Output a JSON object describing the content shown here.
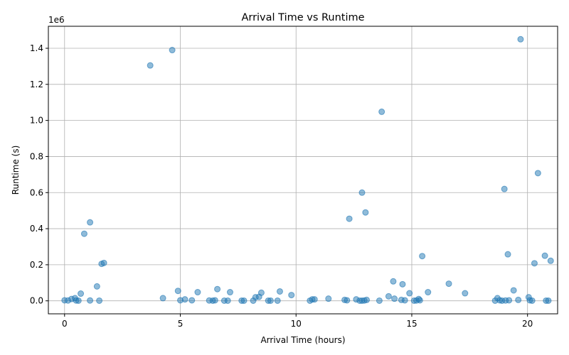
{
  "chart_data": {
    "type": "scatter",
    "title": "Arrival Time vs Runtime",
    "xlabel": "Arrival Time (hours)",
    "ylabel": "Runtime (s)",
    "y_offset_label": "1e6",
    "xlim": [
      -0.7,
      21.3
    ],
    "ylim": [
      -72000,
      1522000
    ],
    "x_ticks": [
      0,
      5,
      10,
      15,
      20
    ],
    "x_tick_labels": [
      "0",
      "5",
      "10",
      "15",
      "20"
    ],
    "y_ticks": [
      0,
      200000,
      400000,
      600000,
      800000,
      1000000,
      1200000,
      1400000
    ],
    "y_tick_labels": [
      "0.0",
      "0.2",
      "0.4",
      "0.6",
      "0.8",
      "1.0",
      "1.2",
      "1.4"
    ],
    "grid": true,
    "marker_color": "#1f77b4",
    "points": [
      {
        "x": 0.0,
        "y": 3000
      },
      {
        "x": 0.15,
        "y": 2000
      },
      {
        "x": 0.3,
        "y": 10000
      },
      {
        "x": 0.45,
        "y": 15000
      },
      {
        "x": 0.5,
        "y": 2000
      },
      {
        "x": 0.6,
        "y": 1000
      },
      {
        "x": 0.7,
        "y": 40000
      },
      {
        "x": 0.85,
        "y": 372000
      },
      {
        "x": 1.1,
        "y": 435000
      },
      {
        "x": 1.1,
        "y": 2000
      },
      {
        "x": 1.4,
        "y": 80000
      },
      {
        "x": 1.5,
        "y": 1000
      },
      {
        "x": 1.6,
        "y": 205000
      },
      {
        "x": 1.7,
        "y": 210000
      },
      {
        "x": 3.7,
        "y": 1305000
      },
      {
        "x": 4.25,
        "y": 15000
      },
      {
        "x": 4.65,
        "y": 1390000
      },
      {
        "x": 4.9,
        "y": 55000
      },
      {
        "x": 5.0,
        "y": 3000
      },
      {
        "x": 5.2,
        "y": 8000
      },
      {
        "x": 5.5,
        "y": 3000
      },
      {
        "x": 5.75,
        "y": 48000
      },
      {
        "x": 6.25,
        "y": 2000
      },
      {
        "x": 6.4,
        "y": 1000
      },
      {
        "x": 6.5,
        "y": 3000
      },
      {
        "x": 6.6,
        "y": 65000
      },
      {
        "x": 6.9,
        "y": 1000
      },
      {
        "x": 7.05,
        "y": 1000
      },
      {
        "x": 7.15,
        "y": 48000
      },
      {
        "x": 7.65,
        "y": 1000
      },
      {
        "x": 7.75,
        "y": 1000
      },
      {
        "x": 8.15,
        "y": 1000
      },
      {
        "x": 8.25,
        "y": 20000
      },
      {
        "x": 8.4,
        "y": 22000
      },
      {
        "x": 8.5,
        "y": 45000
      },
      {
        "x": 8.8,
        "y": 1000
      },
      {
        "x": 8.9,
        "y": 1000
      },
      {
        "x": 9.2,
        "y": 1000
      },
      {
        "x": 9.3,
        "y": 52000
      },
      {
        "x": 9.8,
        "y": 32000
      },
      {
        "x": 10.6,
        "y": 1000
      },
      {
        "x": 10.7,
        "y": 8000
      },
      {
        "x": 10.8,
        "y": 8000
      },
      {
        "x": 11.4,
        "y": 12000
      },
      {
        "x": 12.1,
        "y": 5000
      },
      {
        "x": 12.2,
        "y": 3000
      },
      {
        "x": 12.3,
        "y": 455000
      },
      {
        "x": 12.6,
        "y": 8000
      },
      {
        "x": 12.75,
        "y": 1000
      },
      {
        "x": 12.85,
        "y": 1000
      },
      {
        "x": 12.85,
        "y": 600000
      },
      {
        "x": 12.95,
        "y": 2000
      },
      {
        "x": 13.0,
        "y": 490000
      },
      {
        "x": 13.05,
        "y": 5000
      },
      {
        "x": 13.6,
        "y": 1000
      },
      {
        "x": 13.7,
        "y": 1048000
      },
      {
        "x": 14.0,
        "y": 25000
      },
      {
        "x": 14.2,
        "y": 108000
      },
      {
        "x": 14.25,
        "y": 12000
      },
      {
        "x": 14.55,
        "y": 5000
      },
      {
        "x": 14.6,
        "y": 92000
      },
      {
        "x": 14.7,
        "y": 3000
      },
      {
        "x": 14.9,
        "y": 42000
      },
      {
        "x": 15.1,
        "y": 1000
      },
      {
        "x": 15.2,
        "y": 2000
      },
      {
        "x": 15.3,
        "y": 10000
      },
      {
        "x": 15.35,
        "y": 3000
      },
      {
        "x": 15.45,
        "y": 248000
      },
      {
        "x": 15.7,
        "y": 48000
      },
      {
        "x": 16.6,
        "y": 95000
      },
      {
        "x": 17.3,
        "y": 42000
      },
      {
        "x": 18.6,
        "y": 1000
      },
      {
        "x": 18.7,
        "y": 15000
      },
      {
        "x": 18.8,
        "y": 3000
      },
      {
        "x": 18.9,
        "y": 1000
      },
      {
        "x": 19.0,
        "y": 620000
      },
      {
        "x": 19.05,
        "y": 2000
      },
      {
        "x": 19.15,
        "y": 258000
      },
      {
        "x": 19.2,
        "y": 3000
      },
      {
        "x": 19.4,
        "y": 58000
      },
      {
        "x": 19.6,
        "y": 5000
      },
      {
        "x": 19.7,
        "y": 1450000
      },
      {
        "x": 20.05,
        "y": 20000
      },
      {
        "x": 20.1,
        "y": 3000
      },
      {
        "x": 20.2,
        "y": 1000
      },
      {
        "x": 20.3,
        "y": 208000
      },
      {
        "x": 20.45,
        "y": 708000
      },
      {
        "x": 20.75,
        "y": 250000
      },
      {
        "x": 20.8,
        "y": 1000
      },
      {
        "x": 20.9,
        "y": 1000
      },
      {
        "x": 21.0,
        "y": 222000
      }
    ]
  }
}
